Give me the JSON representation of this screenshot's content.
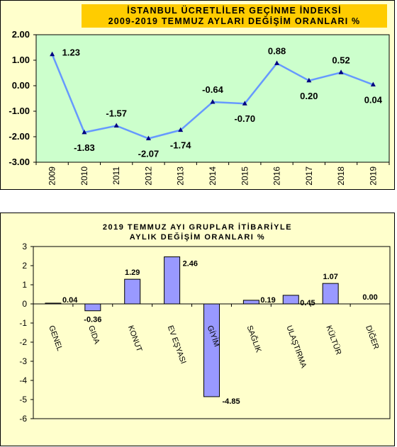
{
  "chart_data": [
    {
      "type": "line",
      "title": [
        "İSTANBUL ÜCRETLİLER GEÇİNME İNDEKSİ",
        "2009-2019  TEMMUZ AYLARI DEĞİŞİM  ORANLARI  %"
      ],
      "categories": [
        "2009",
        "2010",
        "2011",
        "2012",
        "2013",
        "2014",
        "2015",
        "2016",
        "2017",
        "2018",
        "2019"
      ],
      "values": [
        1.23,
        -1.83,
        -1.57,
        -2.07,
        -1.74,
        -0.64,
        -0.7,
        0.88,
        0.2,
        0.52,
        0.04
      ],
      "value_labels": [
        "1.23",
        "-1.83",
        "-1.57",
        "-2.07",
        "-1.74",
        "-0.64",
        "-0.70",
        "0.88",
        "0.20",
        "0.52",
        "0.04"
      ],
      "y_ticks": [
        "2.00",
        "1.00",
        "0.00",
        "-1.00",
        "-2.00",
        "-3.00"
      ],
      "ylim": [
        -3,
        2
      ],
      "grid": false,
      "colors": {
        "plot_bg": "#ccffcc",
        "line": "#6699ff",
        "marker": "#000080",
        "panel_bg": "#ffffcc",
        "title_bg": "#ffcc00"
      }
    },
    {
      "type": "bar",
      "title": [
        "2019 TEMMUZ AYI  GRUPLAR İTİBARİYLE",
        "AYLIK DEĞİŞİM   ORANLARI  %"
      ],
      "categories": [
        "GENEL",
        "GIDA",
        "KONUT",
        "EV EŞYASI",
        "GİYİM",
        "SAĞLIK",
        "ULAŞTIRMA",
        "KÜLTÜR",
        "DİĞER"
      ],
      "values": [
        0.04,
        -0.36,
        1.29,
        2.46,
        -4.85,
        0.19,
        0.45,
        1.07,
        0.0
      ],
      "value_labels": [
        "0.04",
        "-0.36",
        "1.29",
        "2.46",
        "-4.85",
        "0.19",
        "0.45",
        "1.07",
        "0.00"
      ],
      "y_ticks": [
        "3",
        "2",
        "1",
        "0",
        "-1",
        "-2",
        "-3",
        "-4",
        "-5",
        "-6"
      ],
      "ylim": [
        -6,
        3
      ],
      "grid": false,
      "colors": {
        "plot_bg": "#ffffcc",
        "bar": "#9999ff",
        "panel_bg": "#ffffcc"
      }
    }
  ]
}
